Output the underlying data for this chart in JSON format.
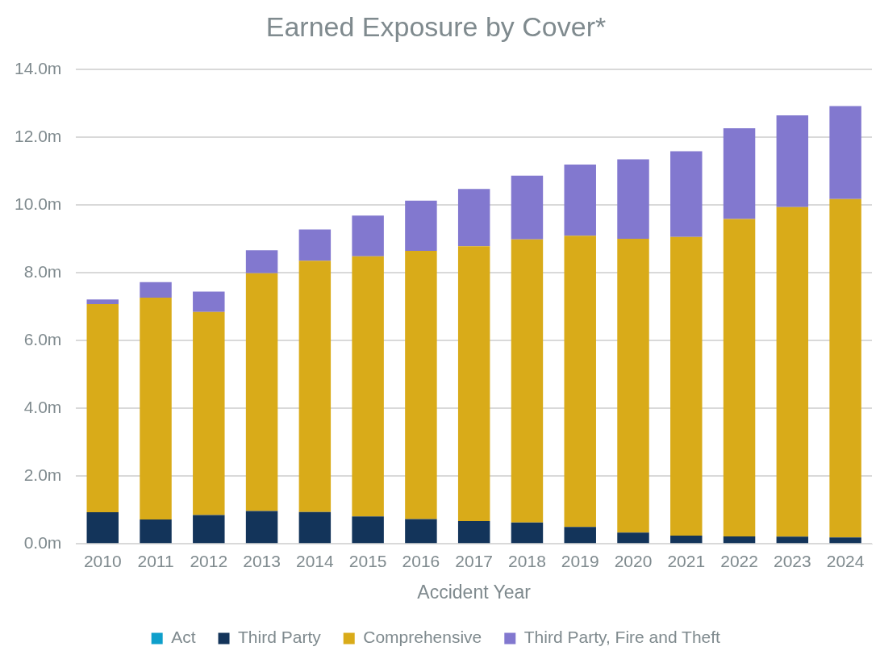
{
  "chart_data": {
    "type": "bar",
    "title": "Earned Exposure by Cover*",
    "xlabel": "Accident Year",
    "categories": [
      "2010",
      "2011",
      "2012",
      "2013",
      "2014",
      "2015",
      "2016",
      "2017",
      "2018",
      "2019",
      "2020",
      "2021",
      "2022",
      "2023",
      "2024"
    ],
    "stacked": true,
    "series": [
      {
        "name": "Act",
        "color": "#0e9fcb",
        "values": [
          0,
          0,
          0,
          0,
          0,
          0,
          0,
          0,
          0,
          0,
          0,
          0,
          0,
          0,
          0
        ]
      },
      {
        "name": "Third Party",
        "color": "#13345a",
        "values": [
          0.93,
          0.72,
          0.85,
          0.97,
          0.94,
          0.81,
          0.73,
          0.67,
          0.63,
          0.5,
          0.33,
          0.24,
          0.22,
          0.21,
          0.19
        ]
      },
      {
        "name": "Comprehensive",
        "color": "#d9ab19",
        "values": [
          6.14,
          6.54,
          5.99,
          7.01,
          7.41,
          7.67,
          7.91,
          8.11,
          8.35,
          8.59,
          8.67,
          8.81,
          9.36,
          9.72,
          9.98
        ]
      },
      {
        "name": "Third Party, Fire and Theft",
        "color": "#8278cf",
        "values": [
          0.14,
          0.46,
          0.6,
          0.68,
          0.92,
          1.2,
          1.48,
          1.69,
          1.88,
          2.1,
          2.34,
          2.53,
          2.68,
          2.71,
          2.74
        ]
      }
    ],
    "ylim": [
      0,
      14
    ],
    "yticks": [
      {
        "value": 0,
        "label": "0.0m"
      },
      {
        "value": 2,
        "label": "2.0m"
      },
      {
        "value": 4,
        "label": "4.0m"
      },
      {
        "value": 6,
        "label": "6.0m"
      },
      {
        "value": 8,
        "label": "8.0m"
      },
      {
        "value": 10,
        "label": "10.0m"
      },
      {
        "value": 12,
        "label": "12.0m"
      },
      {
        "value": 14,
        "label": "14.0m"
      }
    ],
    "grid": "y",
    "legend": "bottom"
  }
}
